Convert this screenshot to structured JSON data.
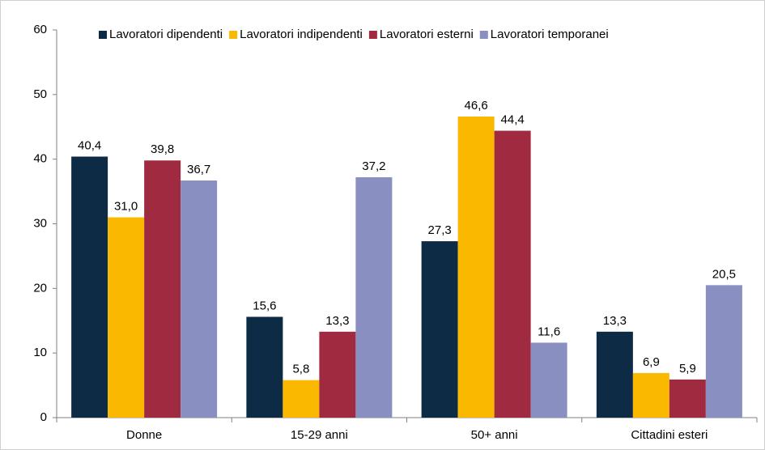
{
  "chart_data": {
    "type": "bar",
    "categories": [
      "Donne",
      "15-29 anni",
      "50+ anni",
      "Cittadini esteri"
    ],
    "series": [
      {
        "name": "Lavoratori dipendenti",
        "color": "#0d2b45",
        "values": [
          40.4,
          15.6,
          27.3,
          13.3
        ],
        "value_labels": [
          "40,4",
          "15,6",
          "27,3",
          "13,3"
        ]
      },
      {
        "name": "Lavoratori indipendenti",
        "color": "#fbb800",
        "values": [
          31.0,
          5.8,
          46.6,
          6.9
        ],
        "value_labels": [
          "31,0",
          "5,8",
          "46,6",
          "6,9"
        ]
      },
      {
        "name": "Lavoratori esterni",
        "color": "#a02a40",
        "values": [
          39.8,
          13.3,
          44.4,
          5.9
        ],
        "value_labels": [
          "39,8",
          "13,3",
          "44,4",
          "5,9"
        ]
      },
      {
        "name": "Lavoratori temporanei",
        "color": "#8a8fc2",
        "values": [
          36.7,
          37.2,
          11.6,
          20.5
        ],
        "value_labels": [
          "36,7",
          "37,2",
          "11,6",
          "20,5"
        ]
      }
    ],
    "ylim": [
      0,
      60
    ],
    "yticks": [
      0,
      10,
      20,
      30,
      40,
      50,
      60
    ],
    "grid": false,
    "legend": "top"
  }
}
